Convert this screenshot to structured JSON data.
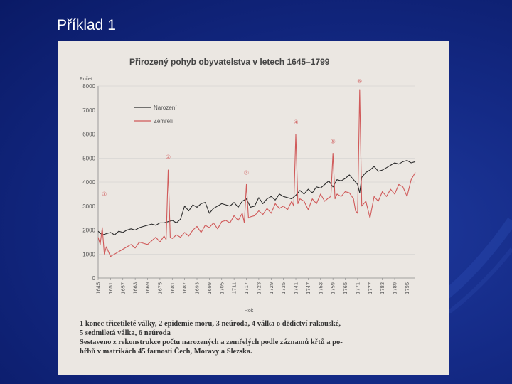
{
  "slide": {
    "title": "Příklad 1"
  },
  "chart_data": {
    "type": "line",
    "title": "Přirozený pohyb obyvatelstva v letech 1645–1799",
    "ylabel": "Počet",
    "xlabel": "Rok",
    "ylim": [
      0,
      8000
    ],
    "xlim": [
      1645,
      1799
    ],
    "yticks": [
      0,
      1000,
      2000,
      3000,
      4000,
      5000,
      6000,
      7000,
      8000
    ],
    "xticks": [
      1645,
      1651,
      1657,
      1663,
      1669,
      1675,
      1681,
      1687,
      1693,
      1699,
      1705,
      1711,
      1717,
      1723,
      1729,
      1735,
      1741,
      1747,
      1753,
      1759,
      1765,
      1771,
      1777,
      1783,
      1789,
      1795
    ],
    "legend": "top-left",
    "series": [
      {
        "name": "Narození",
        "color": "#2b2b2b",
        "x": [
          1645,
          1647,
          1649,
          1651,
          1653,
          1655,
          1657,
          1659,
          1661,
          1663,
          1665,
          1667,
          1669,
          1671,
          1673,
          1675,
          1677,
          1679,
          1681,
          1683,
          1685,
          1687,
          1689,
          1691,
          1693,
          1695,
          1697,
          1699,
          1701,
          1703,
          1705,
          1707,
          1709,
          1711,
          1713,
          1715,
          1717,
          1719,
          1721,
          1723,
          1725,
          1727,
          1729,
          1731,
          1733,
          1735,
          1737,
          1739,
          1741,
          1743,
          1745,
          1747,
          1749,
          1751,
          1753,
          1755,
          1757,
          1759,
          1761,
          1763,
          1765,
          1767,
          1769,
          1771,
          1772,
          1773,
          1775,
          1777,
          1779,
          1781,
          1783,
          1785,
          1787,
          1789,
          1791,
          1793,
          1795,
          1797,
          1799
        ],
        "values": [
          1950,
          1800,
          1850,
          1900,
          1800,
          1950,
          1900,
          2000,
          2050,
          2000,
          2100,
          2150,
          2200,
          2250,
          2200,
          2300,
          2300,
          2350,
          2400,
          2300,
          2450,
          3000,
          2800,
          3050,
          2950,
          3100,
          3150,
          2700,
          2900,
          3000,
          3100,
          3050,
          3000,
          3150,
          2950,
          3200,
          3300,
          2950,
          3000,
          3350,
          3100,
          3300,
          3400,
          3250,
          3500,
          3400,
          3350,
          3300,
          3450,
          3650,
          3500,
          3700,
          3550,
          3800,
          3750,
          3900,
          4050,
          3800,
          4100,
          4050,
          4150,
          4300,
          4100,
          3900,
          3550,
          4200,
          4400,
          4500,
          4650,
          4450,
          4500,
          4600,
          4700,
          4800,
          4750,
          4850,
          4900,
          4800,
          4850
        ]
      },
      {
        "name": "Zemřelí",
        "color": "#d05a5a",
        "x": [
          1645,
          1646,
          1647,
          1648,
          1649,
          1651,
          1653,
          1655,
          1657,
          1659,
          1661,
          1663,
          1665,
          1667,
          1669,
          1671,
          1673,
          1675,
          1677,
          1678,
          1679,
          1680,
          1681,
          1683,
          1685,
          1687,
          1689,
          1691,
          1693,
          1695,
          1697,
          1699,
          1701,
          1703,
          1705,
          1707,
          1709,
          1711,
          1713,
          1715,
          1716,
          1717,
          1718,
          1719,
          1721,
          1723,
          1725,
          1727,
          1729,
          1731,
          1733,
          1735,
          1737,
          1739,
          1740,
          1741,
          1742,
          1743,
          1745,
          1747,
          1749,
          1751,
          1753,
          1755,
          1757,
          1758,
          1759,
          1760,
          1761,
          1763,
          1765,
          1767,
          1769,
          1770,
          1771,
          1772,
          1773,
          1775,
          1777,
          1779,
          1781,
          1783,
          1785,
          1787,
          1789,
          1791,
          1793,
          1795,
          1797,
          1799
        ],
        "values": [
          1700,
          1400,
          2100,
          1000,
          1300,
          900,
          1000,
          1100,
          1200,
          1300,
          1400,
          1250,
          1500,
          1450,
          1400,
          1550,
          1700,
          1500,
          1750,
          1600,
          4500,
          1700,
          1650,
          1800,
          1700,
          1900,
          1750,
          2000,
          2150,
          1900,
          2200,
          2100,
          2300,
          2050,
          2350,
          2400,
          2300,
          2600,
          2400,
          2700,
          2300,
          3900,
          2500,
          2550,
          2600,
          2800,
          2650,
          2900,
          2700,
          3100,
          2900,
          3000,
          2850,
          3200,
          3000,
          6000,
          3100,
          3300,
          3200,
          2850,
          3300,
          3100,
          3500,
          3200,
          3350,
          3400,
          5200,
          3300,
          3500,
          3400,
          3600,
          3550,
          3300,
          2800,
          2700,
          7850,
          3000,
          3200,
          2500,
          3400,
          3200,
          3600,
          3400,
          3700,
          3500,
          3900,
          3800,
          3400,
          4100,
          4400
        ]
      }
    ],
    "annotations": [
      {
        "label": "①",
        "x": 1648,
        "y": 3300
      },
      {
        "label": "②",
        "x": 1679,
        "y": 4850
      },
      {
        "label": "③",
        "x": 1717,
        "y": 4200
      },
      {
        "label": "④",
        "x": 1741,
        "y": 6300
      },
      {
        "label": "⑤",
        "x": 1759,
        "y": 5500
      },
      {
        "label": "⑥",
        "x": 1772,
        "y": 8000
      }
    ],
    "caption": [
      "1 konec třicetileté války, 2 epidemie moru, 3 neúroda, 4 válka o dědictví rakouské,",
      "5 sedmiletá válka, 6 neúroda",
      "Sestaveno z rekonstrukce počtu narozených a zemřelých podle záznamů křtů a po-",
      "hřbů v matrikách 45 farností Čech, Moravy a Slezska."
    ]
  }
}
